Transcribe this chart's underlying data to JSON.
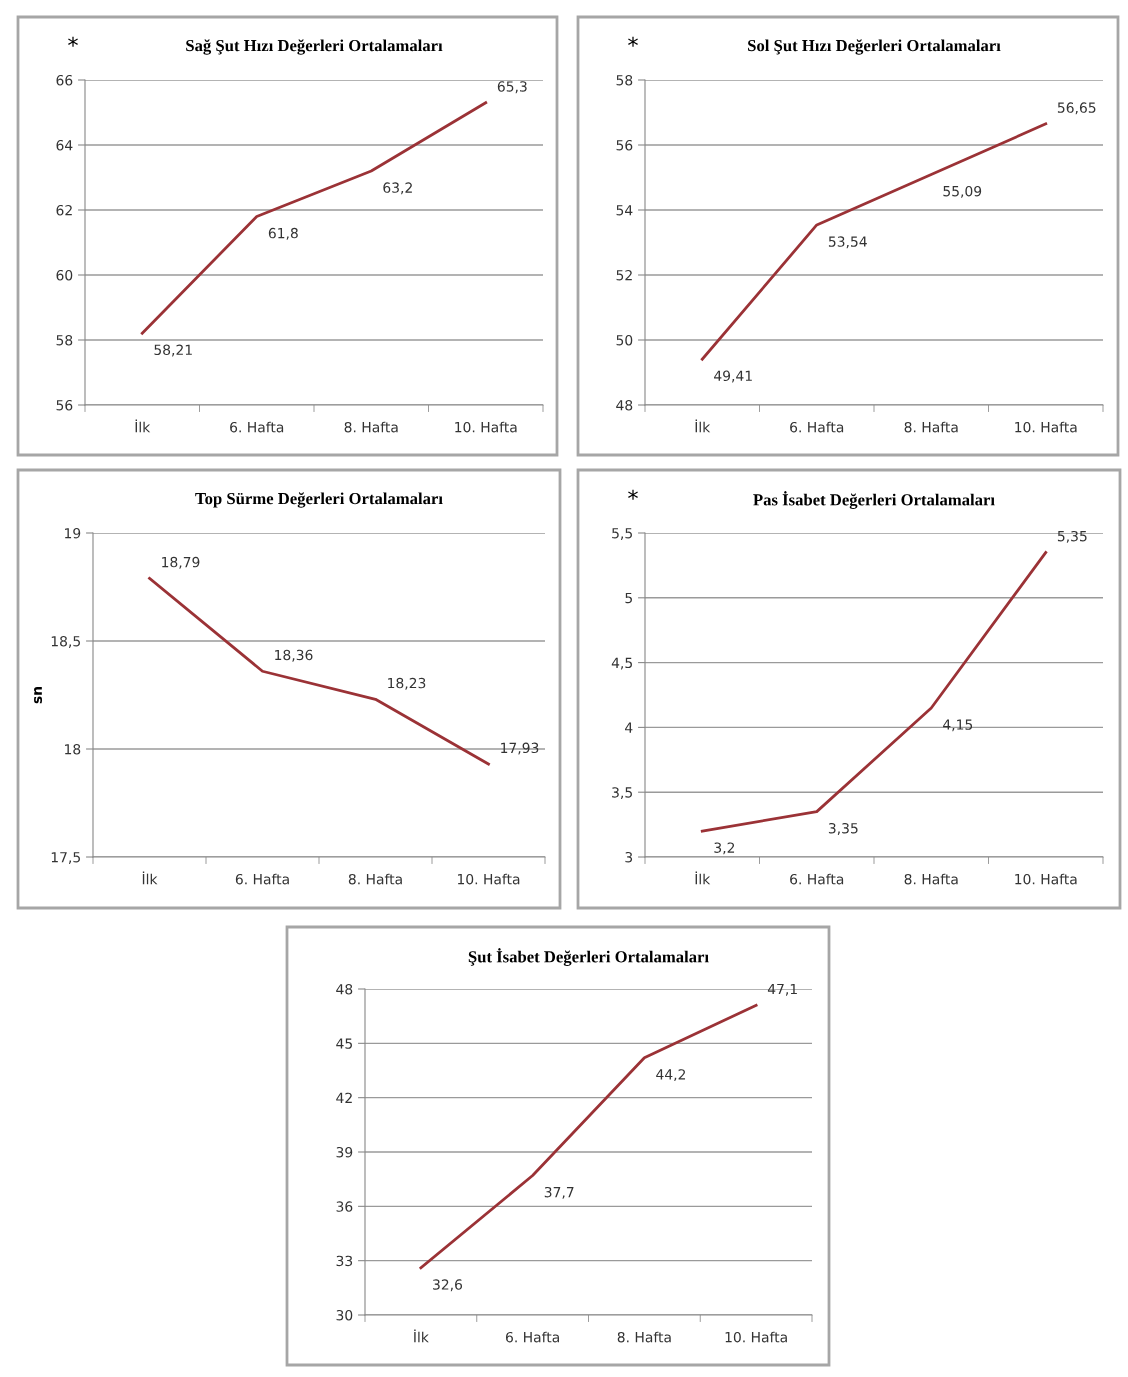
{
  "chart_data": [
    {
      "type": "line",
      "title": "Sağ Şut Hızı Değerleri Ortalamaları",
      "annotations": [
        "*"
      ],
      "categories": [
        "İlk",
        "6. Hafta",
        "8. Hafta",
        "10. Hafta"
      ],
      "values": [
        58.21,
        61.8,
        63.2,
        65.3
      ],
      "value_labels": [
        "58,21",
        "61,8",
        "63,2",
        "65,3"
      ],
      "color": "#9b3236",
      "ylim": [
        56,
        66
      ],
      "yticks": [
        56,
        58,
        60,
        62,
        64,
        66
      ],
      "grid": "y",
      "marker": "none",
      "line_style": "solid"
    },
    {
      "type": "line",
      "title": "Sol Şut Hızı Değerleri Ortalamaları",
      "annotations": [
        "*"
      ],
      "categories": [
        "İlk",
        "6. Hafta",
        "8. Hafta",
        "10. Hafta"
      ],
      "values": [
        49.41,
        53.54,
        55.09,
        56.65
      ],
      "value_labels": [
        "49,41",
        "53,54",
        "55,09",
        "56,65"
      ],
      "color": "#9b3236",
      "ylim": [
        48,
        58
      ],
      "yticks": [
        48,
        50,
        52,
        54,
        56,
        58
      ],
      "grid": "y",
      "marker": "none",
      "line_style": "solid"
    },
    {
      "type": "line",
      "title": "Top Sürme Değerleri Ortalamaları",
      "ylabel": "sn",
      "categories": [
        "İlk",
        "6. Hafta",
        "8. Hafta",
        "10. Hafta"
      ],
      "values": [
        18.79,
        18.36,
        18.23,
        17.93
      ],
      "value_labels": [
        "18,79",
        "18,36",
        "18,23",
        "17,93"
      ],
      "color": "#9b3236",
      "ylim": [
        17.5,
        19
      ],
      "yticks": [
        {
          "value": 17.5,
          "label": "17,5"
        },
        18,
        {
          "value": 18.5,
          "label": "18,5"
        },
        19
      ],
      "grid": "y",
      "marker": "none",
      "line_style": "solid"
    },
    {
      "type": "line",
      "title": "Pas İsabet Değerleri Ortalamaları",
      "annotations": [
        "*"
      ],
      "categories": [
        "İlk",
        "6. Hafta",
        "8. Hafta",
        "10. Hafta"
      ],
      "values": [
        3.2,
        3.35,
        4.15,
        5.35
      ],
      "value_labels": [
        "3,2",
        "3,35",
        "4,15",
        "5,35"
      ],
      "color": "#9b3236",
      "ylim": [
        3,
        5.5
      ],
      "yticks": [
        3,
        {
          "value": 3.5,
          "label": "3,5"
        },
        4,
        {
          "value": 4.5,
          "label": "4,5"
        },
        5,
        {
          "value": 5.5,
          "label": "5,5"
        }
      ],
      "grid": "y",
      "marker": "none",
      "line_style": "solid"
    },
    {
      "type": "line",
      "title": "Şut İsabet Değerleri Ortalamaları",
      "categories": [
        "İlk",
        "6. Hafta",
        "8. Hafta",
        "10. Hafta"
      ],
      "values": [
        32.6,
        37.7,
        44.2,
        47.1
      ],
      "value_labels": [
        "32,6",
        "37,7",
        "44,2",
        "47,1"
      ],
      "color": "#9b3236",
      "ylim": [
        30,
        48
      ],
      "yticks": [
        30,
        33,
        36,
        39,
        42,
        45,
        48
      ],
      "grid": "y",
      "marker": "none",
      "line_style": "solid"
    }
  ]
}
